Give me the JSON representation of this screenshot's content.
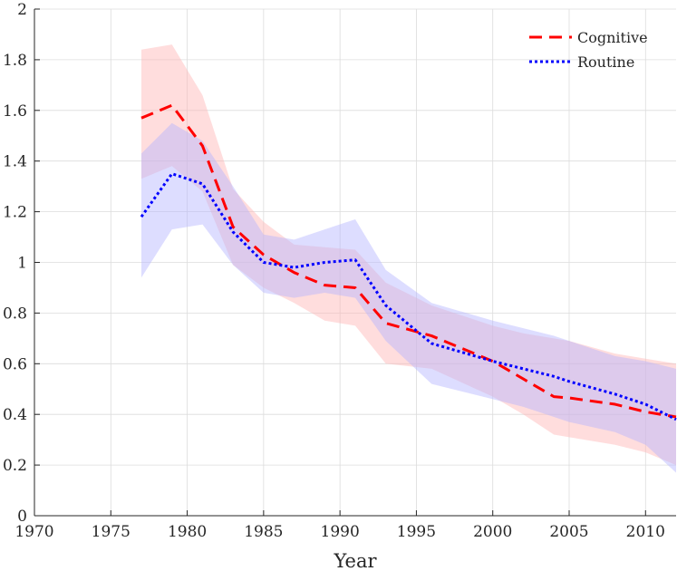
{
  "chart_data": {
    "type": "line",
    "title": "",
    "xlabel": "Year",
    "ylabel": "",
    "xlim": [
      1970,
      2012
    ],
    "ylim": [
      0,
      2
    ],
    "xticks": [
      "1970",
      "1975",
      "1980",
      "1985",
      "1990",
      "1995",
      "2000",
      "2005",
      "2010"
    ],
    "yticks": [
      "0",
      "0.2",
      "0.4",
      "0.6",
      "0.8",
      "1",
      "1.2",
      "1.4",
      "1.6",
      "1.8",
      "2"
    ],
    "grid": true,
    "legend_position": "top-right",
    "series": [
      {
        "name": "Cognitive",
        "color": "#ff0000",
        "style": "dashed",
        "band_color": "#ffb3b3",
        "x": [
          1977,
          1979,
          1981,
          1983,
          1985,
          1987,
          1989,
          1991,
          1993,
          1996,
          2000,
          2002,
          2004,
          2005,
          2008,
          2010,
          2012
        ],
        "y": [
          1.57,
          1.62,
          1.46,
          1.14,
          1.03,
          0.96,
          0.91,
          0.9,
          0.76,
          0.71,
          0.61,
          0.54,
          0.47,
          0.465,
          0.44,
          0.41,
          0.39
        ],
        "upper": [
          1.84,
          1.86,
          1.66,
          1.29,
          1.16,
          1.07,
          1.06,
          1.05,
          0.92,
          0.83,
          0.75,
          0.72,
          0.7,
          0.69,
          0.64,
          0.62,
          0.6
        ],
        "lower": [
          1.33,
          1.38,
          1.28,
          0.99,
          0.9,
          0.84,
          0.77,
          0.75,
          0.6,
          0.58,
          0.47,
          0.4,
          0.32,
          0.31,
          0.28,
          0.25,
          0.2
        ]
      },
      {
        "name": "Routine",
        "color": "#0000ff",
        "style": "dotted",
        "band_color": "#b3b3ff",
        "x": [
          1977,
          1979,
          1981,
          1983,
          1985,
          1987,
          1989,
          1991,
          1993,
          1996,
          2000,
          2002,
          2004,
          2005,
          2008,
          2010,
          2012
        ],
        "y": [
          1.18,
          1.35,
          1.31,
          1.12,
          1.0,
          0.98,
          1.0,
          1.01,
          0.83,
          0.68,
          0.61,
          0.58,
          0.55,
          0.53,
          0.48,
          0.44,
          0.38
        ],
        "upper": [
          1.43,
          1.55,
          1.48,
          1.3,
          1.11,
          1.09,
          1.13,
          1.17,
          0.97,
          0.84,
          0.77,
          0.74,
          0.71,
          0.69,
          0.63,
          0.61,
          0.58
        ],
        "lower": [
          0.94,
          1.13,
          1.15,
          0.99,
          0.88,
          0.86,
          0.88,
          0.86,
          0.69,
          0.52,
          0.46,
          0.43,
          0.39,
          0.37,
          0.33,
          0.28,
          0.17
        ]
      }
    ]
  }
}
